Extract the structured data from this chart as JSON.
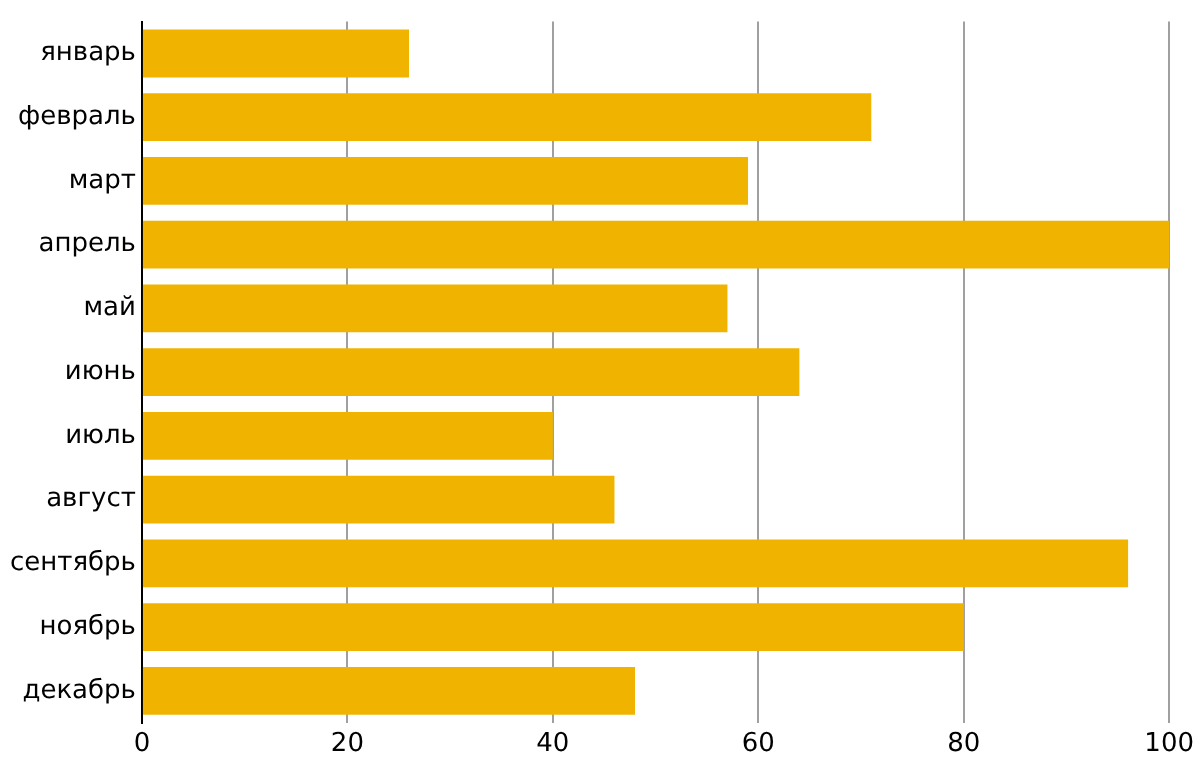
{
  "chart_data": {
    "type": "bar",
    "orientation": "horizontal",
    "categories": [
      "январь",
      "февраль",
      "март",
      "апрель",
      "май",
      "июнь",
      "июль",
      "август",
      "сентябрь",
      "ноябрь",
      "декабрь"
    ],
    "values": [
      26,
      71,
      59,
      100,
      57,
      64,
      40,
      46,
      96,
      80,
      48
    ],
    "color": "#f0b400",
    "xlim": [
      0,
      100
    ],
    "xticks": [
      0,
      20,
      40,
      60,
      80,
      100
    ],
    "grid": "x",
    "legend": false
  }
}
